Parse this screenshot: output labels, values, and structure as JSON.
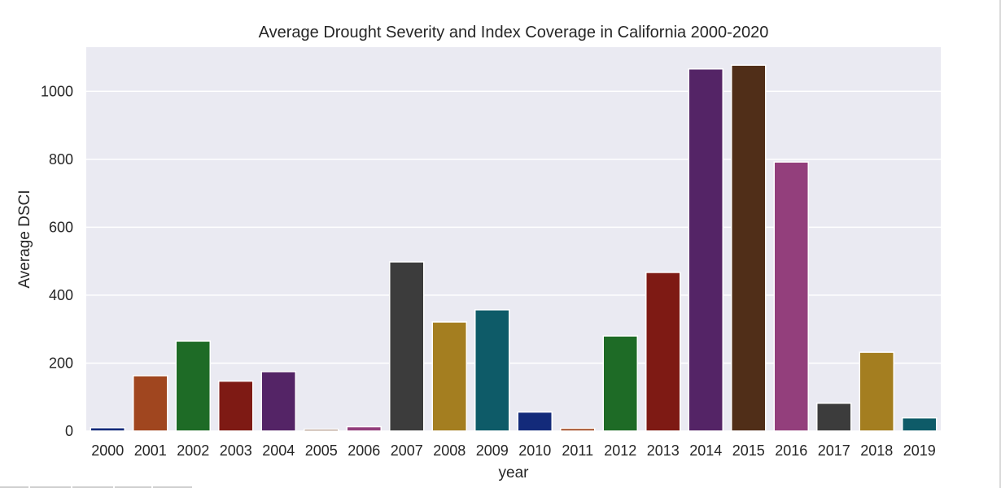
{
  "chart_data": {
    "type": "bar",
    "title": "Average Drought Severity and Index Coverage in California 2000-2020",
    "xlabel": "year",
    "ylabel": "Average DSCI",
    "categories": [
      "2000",
      "2001",
      "2002",
      "2003",
      "2004",
      "2005",
      "2006",
      "2007",
      "2008",
      "2009",
      "2010",
      "2011",
      "2012",
      "2013",
      "2014",
      "2015",
      "2016",
      "2017",
      "2018",
      "2019"
    ],
    "values": [
      10,
      163,
      265,
      147,
      175,
      5,
      13,
      498,
      321,
      357,
      56,
      8,
      280,
      467,
      1066,
      1077,
      792,
      82,
      232,
      39
    ],
    "colors": [
      "#132a7a",
      "#a0461f",
      "#1e6b26",
      "#7e1a14",
      "#542466",
      "#6e3a1e",
      "#933f7c",
      "#3c3c3c",
      "#a47e20",
      "#0e5b68",
      "#132a7a",
      "#a0461f",
      "#1e6b26",
      "#7e1a14",
      "#542466",
      "#502e18",
      "#933f7c",
      "#3c3c3c",
      "#a47e20",
      "#0e5b68"
    ],
    "y_ticks": [
      0,
      200,
      400,
      600,
      800,
      1000
    ],
    "ylim": [
      0,
      1130
    ],
    "grid": true,
    "background": "#eaeaf2"
  }
}
